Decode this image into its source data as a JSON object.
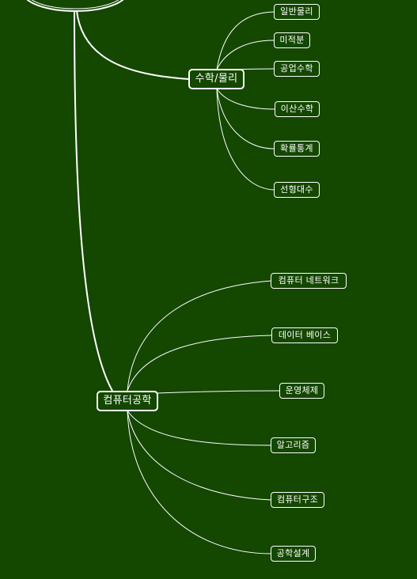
{
  "mindmap": {
    "colors": {
      "background": "#144700",
      "line": "#ffffff"
    },
    "branches": [
      {
        "label": "수학/물리",
        "children": [
          "일반물리",
          "미적분",
          "공업수학",
          "이산수학",
          "확률통계",
          "선형대수"
        ]
      },
      {
        "label": "컴퓨터공학",
        "children": [
          "컴퓨터 네트워크",
          "데이터 베이스",
          "운영체제",
          "알고리즘",
          "컴퓨터구조",
          "공학설계"
        ]
      }
    ]
  }
}
